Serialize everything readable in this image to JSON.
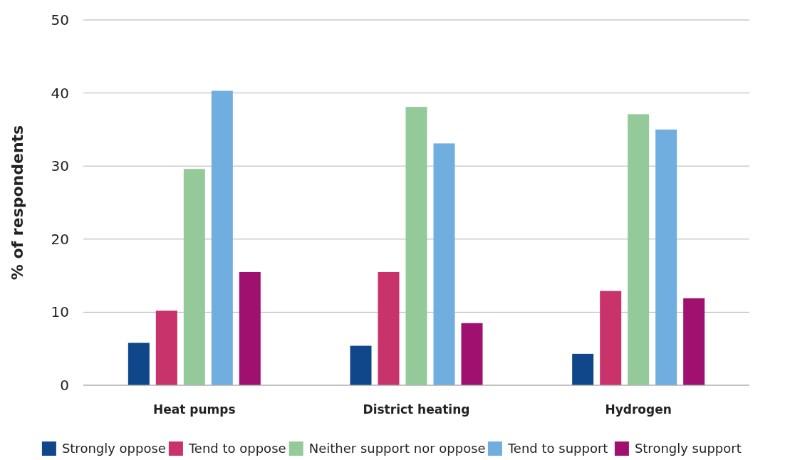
{
  "chart_data": {
    "type": "bar",
    "ylabel": "% of respondents",
    "categories": [
      "Heat pumps",
      "District heating",
      "Hydrogen"
    ],
    "series": [
      {
        "name": "Strongly oppose",
        "color": "#10478b",
        "values": [
          5.8,
          5.4,
          4.3
        ]
      },
      {
        "name": "Tend to oppose",
        "color": "#c8336b",
        "values": [
          10.2,
          15.5,
          12.9
        ]
      },
      {
        "name": "Neither support nor oppose",
        "color": "#94c999",
        "values": [
          29.6,
          38.1,
          37.1
        ]
      },
      {
        "name": "Tend to support",
        "color": "#70aee0",
        "values": [
          40.3,
          33.1,
          35.0
        ]
      },
      {
        "name": "Strongly support",
        "color": "#a0116f",
        "values": [
          15.5,
          8.5,
          11.9
        ]
      }
    ],
    "ylim": [
      0,
      50
    ],
    "yticks": [
      0,
      10,
      20,
      30,
      40,
      50
    ],
    "grid": "y",
    "legend": "bottom"
  }
}
